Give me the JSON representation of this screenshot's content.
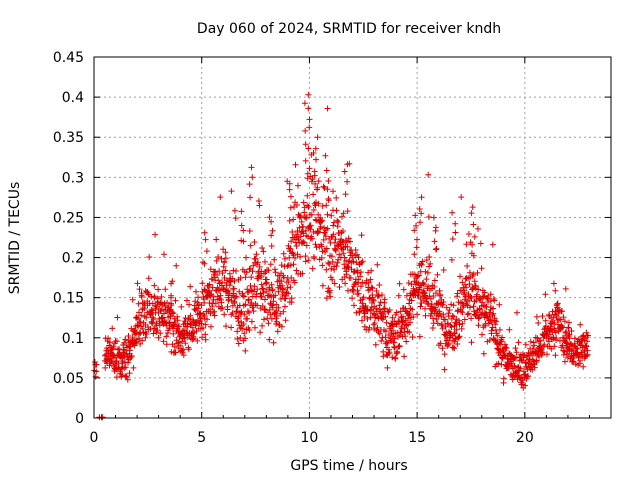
{
  "chart_data": {
    "type": "scatter",
    "title": "Day 060 of 2024, SRMTID for receiver kndh",
    "xlabel": "GPS time / hours",
    "ylabel": "SRMTID / TECUs",
    "xlim": [
      0,
      24
    ],
    "ylim": [
      0,
      0.45
    ],
    "x_ticks": [
      0,
      5,
      10,
      15,
      20
    ],
    "y_ticks": [
      0,
      0.05,
      0.1,
      0.15,
      0.2,
      0.25,
      0.3,
      0.35,
      0.4,
      0.45
    ],
    "x_tick_labels": [
      "0",
      "5",
      "10",
      "15",
      "20"
    ],
    "y_tick_labels": [
      "0",
      "0.05",
      "0.1",
      "0.15",
      "0.2",
      "0.25",
      "0.3",
      "0.35",
      "0.4",
      "0.45"
    ],
    "grid": true,
    "marker": "plus",
    "color": "#e00000",
    "profile": {
      "description": "Approximate trend of the dense scatter: [hour, median, spread]",
      "points": [
        [
          0.0,
          0.055,
          0.01
        ],
        [
          0.2,
          0.0,
          0.0
        ],
        [
          0.5,
          0.08,
          0.02
        ],
        [
          1.0,
          0.08,
          0.025
        ],
        [
          1.5,
          0.075,
          0.025
        ],
        [
          2.0,
          0.11,
          0.03
        ],
        [
          2.5,
          0.14,
          0.035
        ],
        [
          3.0,
          0.13,
          0.035
        ],
        [
          3.5,
          0.12,
          0.035
        ],
        [
          4.0,
          0.1,
          0.03
        ],
        [
          4.5,
          0.11,
          0.03
        ],
        [
          5.0,
          0.13,
          0.035
        ],
        [
          5.5,
          0.16,
          0.035
        ],
        [
          6.0,
          0.17,
          0.04
        ],
        [
          6.5,
          0.15,
          0.045
        ],
        [
          7.0,
          0.13,
          0.045
        ],
        [
          7.5,
          0.17,
          0.05
        ],
        [
          8.0,
          0.15,
          0.045
        ],
        [
          8.5,
          0.14,
          0.045
        ],
        [
          9.0,
          0.18,
          0.05
        ],
        [
          9.5,
          0.22,
          0.055
        ],
        [
          10.0,
          0.26,
          0.06
        ],
        [
          10.5,
          0.23,
          0.055
        ],
        [
          11.0,
          0.21,
          0.05
        ],
        [
          11.5,
          0.22,
          0.055
        ],
        [
          12.0,
          0.18,
          0.045
        ],
        [
          12.5,
          0.15,
          0.04
        ],
        [
          13.0,
          0.14,
          0.04
        ],
        [
          13.5,
          0.11,
          0.035
        ],
        [
          14.0,
          0.1,
          0.03
        ],
        [
          14.5,
          0.13,
          0.04
        ],
        [
          15.0,
          0.17,
          0.05
        ],
        [
          15.5,
          0.16,
          0.045
        ],
        [
          16.0,
          0.13,
          0.04
        ],
        [
          16.5,
          0.11,
          0.035
        ],
        [
          17.0,
          0.14,
          0.045
        ],
        [
          17.5,
          0.17,
          0.05
        ],
        [
          18.0,
          0.13,
          0.035
        ],
        [
          18.5,
          0.12,
          0.035
        ],
        [
          19.0,
          0.075,
          0.025
        ],
        [
          19.5,
          0.065,
          0.02
        ],
        [
          20.0,
          0.06,
          0.02
        ],
        [
          20.5,
          0.08,
          0.02
        ],
        [
          21.0,
          0.1,
          0.025
        ],
        [
          21.5,
          0.12,
          0.03
        ],
        [
          22.0,
          0.09,
          0.025
        ],
        [
          22.5,
          0.08,
          0.025
        ],
        [
          22.9,
          0.095,
          0.02
        ]
      ],
      "peaks": [
        [
          10.0,
          0.405
        ],
        [
          9.9,
          0.36
        ],
        [
          10.3,
          0.35
        ],
        [
          11.7,
          0.32
        ],
        [
          7.3,
          0.32
        ],
        [
          15.2,
          0.28
        ],
        [
          17.6,
          0.27
        ],
        [
          16.7,
          0.26
        ],
        [
          6.9,
          0.26
        ],
        [
          15.8,
          0.25
        ],
        [
          9.1,
          0.3
        ],
        [
          10.8,
          0.31
        ],
        [
          14.9,
          0.26
        ],
        [
          5.2,
          0.235
        ],
        [
          3.6,
          0.18
        ],
        [
          21.5,
          0.16
        ],
        [
          22.0,
          0.12
        ],
        [
          8.2,
          0.26
        ]
      ],
      "zeros": [
        [
          0.25,
          0.0
        ],
        [
          0.35,
          0.0
        ],
        [
          0.4,
          0.0
        ]
      ],
      "n_points": 1900
    }
  }
}
